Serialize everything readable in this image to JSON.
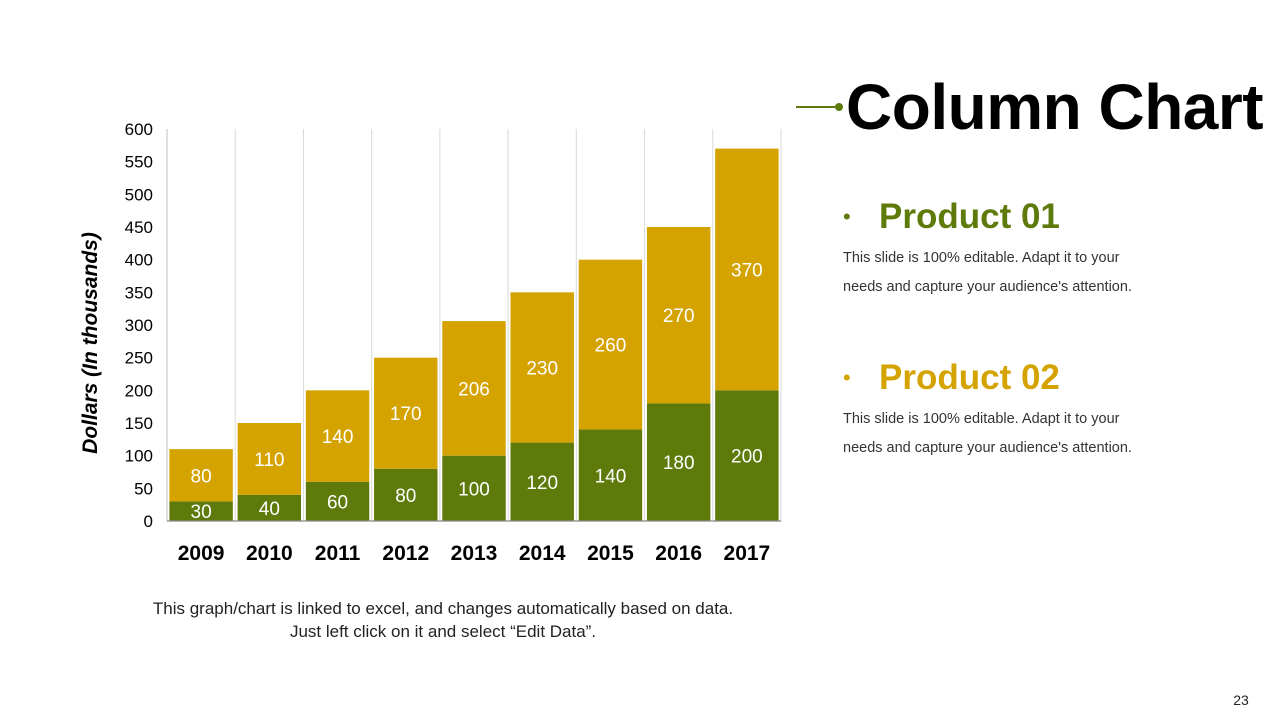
{
  "title": "Column Chart",
  "products": [
    {
      "name": "Product 01",
      "description": "This slide is 100% editable. Adapt it to your needs and capture your audience's attention."
    },
    {
      "name": "Product 02",
      "description": "This slide is 100% editable. Adapt it to your needs and capture your audience's attention."
    }
  ],
  "note": "This graph/chart is linked to excel, and changes automatically based on data. Just left click on it and select “Edit Data”.",
  "page_number": "23",
  "colors": {
    "green": "#5e7a0a",
    "gold": "#d4a300"
  },
  "chart_data": {
    "type": "bar",
    "stacked": true,
    "title": "",
    "xlabel": "",
    "ylabel": "Dollars (In thousands)",
    "categories": [
      "2009",
      "2010",
      "2011",
      "2012",
      "2013",
      "2014",
      "2015",
      "2016",
      "2017"
    ],
    "series": [
      {
        "name": "Product 01",
        "color": "#5e7a0a",
        "values": [
          30,
          40,
          60,
          80,
          100,
          120,
          140,
          180,
          200
        ]
      },
      {
        "name": "Product 02",
        "color": "#d4a300",
        "values": [
          80,
          110,
          140,
          170,
          206,
          230,
          260,
          270,
          370
        ]
      }
    ],
    "ylim": [
      0,
      600
    ],
    "yticks": [
      0,
      50,
      100,
      150,
      200,
      250,
      300,
      350,
      400,
      450,
      500,
      550,
      600
    ],
    "grid": "vertical"
  }
}
